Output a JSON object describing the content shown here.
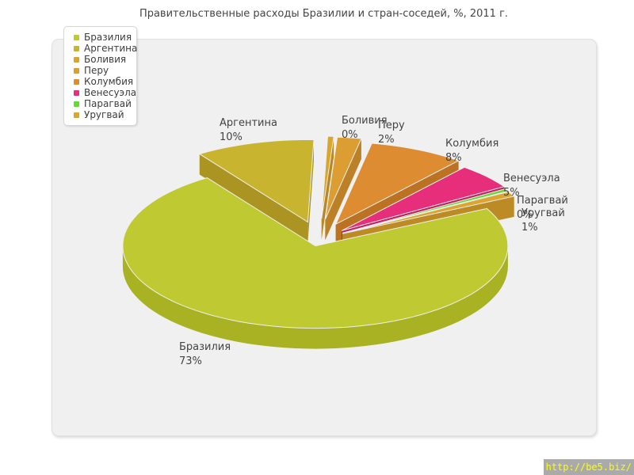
{
  "title": "Правительственные расходы Бразилии и стран-соседей, %, 2011 г.",
  "watermark": "http://be5.biz/",
  "chart_data": {
    "type": "pie",
    "style": "3d-exploded",
    "title": "Правительственные расходы Бразилии и стран-соседей, %, 2011 г.",
    "unit": "%",
    "legend_position": "top-left",
    "slices": [
      {
        "name": "Бразилия",
        "value": 73,
        "label": "73%",
        "color": "#bfca33",
        "side_color": "#a8b222"
      },
      {
        "name": "Аргентина",
        "value": 10,
        "label": "10%",
        "color": "#c8b42e",
        "side_color": "#ab9421"
      },
      {
        "name": "Боливия",
        "value": 0,
        "label": "0%",
        "color": "#d9a52d",
        "side_color": "#b98724"
      },
      {
        "name": "Перу",
        "value": 2,
        "label": "2%",
        "color": "#dc9e33",
        "side_color": "#bc8126"
      },
      {
        "name": "Колумбия",
        "value": 8,
        "label": "8%",
        "color": "#dd8c31",
        "side_color": "#bc7223"
      },
      {
        "name": "Венесуэла",
        "value": 5,
        "label": "5%",
        "color": "#e62e7a",
        "side_color": "#c2215d"
      },
      {
        "name": "Парагвай",
        "value": 0,
        "label": "0%",
        "color": "#64da38",
        "side_color": "#4fb529"
      },
      {
        "name": "Уругвай",
        "value": 1,
        "label": "1%",
        "color": "#dda42e",
        "side_color": "#bd8b25"
      }
    ]
  },
  "colors": {
    "page_bg": "#ffffff",
    "panel_bg": "#f0f0f0",
    "panel_border": "#e0e0e0",
    "legend_bg": "#ffffff",
    "legend_border": "#d6d6d6",
    "text": "#454545",
    "watermark_bg": "#aaaaaa",
    "watermark_text": "#ffff00"
  }
}
